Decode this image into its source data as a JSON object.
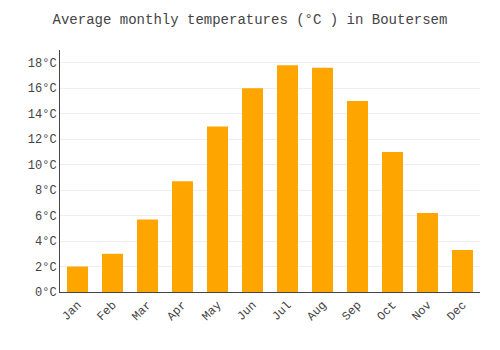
{
  "chart_data": {
    "type": "bar",
    "title": "Average monthly temperatures (°C ) in Boutersem",
    "categories": [
      "Jan",
      "Feb",
      "Mar",
      "Apr",
      "May",
      "Jun",
      "Jul",
      "Aug",
      "Sep",
      "Oct",
      "Nov",
      "Dec"
    ],
    "values": [
      2.0,
      3.0,
      5.7,
      8.7,
      13.0,
      16.0,
      17.8,
      17.6,
      15.0,
      11.0,
      6.2,
      3.3
    ],
    "color": "#FFA500",
    "ylim": [
      0,
      19
    ],
    "yticks": [
      {
        "value": 0,
        "label": "0°C"
      },
      {
        "value": 2,
        "label": "2°C"
      },
      {
        "value": 4,
        "label": "4°C"
      },
      {
        "value": 6,
        "label": "6°C"
      },
      {
        "value": 8,
        "label": "8°C"
      },
      {
        "value": 10,
        "label": "10°C"
      },
      {
        "value": 12,
        "label": "12°C"
      },
      {
        "value": 14,
        "label": "14°C"
      },
      {
        "value": 16,
        "label": "16°C"
      },
      {
        "value": 18,
        "label": "18°C"
      }
    ],
    "grid": true
  }
}
